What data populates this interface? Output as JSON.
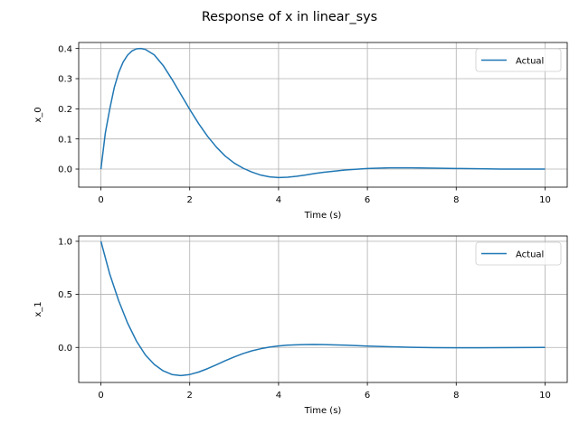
{
  "figure": {
    "suptitle": "Response of x in linear_sys"
  },
  "chart_data": [
    {
      "type": "line",
      "title": "",
      "xlabel": "Time (s)",
      "ylabel": "x_0",
      "xlim": [
        -0.5,
        10.5
      ],
      "ylim": [
        -0.06,
        0.42
      ],
      "xticks": [
        0,
        2,
        4,
        6,
        8,
        10
      ],
      "xtick_labels": [
        "0",
        "2",
        "4",
        "6",
        "8",
        "10"
      ],
      "yticks": [
        0.0,
        0.1,
        0.2,
        0.3,
        0.4
      ],
      "ytick_labels": [
        "0.0",
        "0.1",
        "0.2",
        "0.3",
        "0.4"
      ],
      "grid": true,
      "legend_position": "top-right",
      "series": [
        {
          "name": "Actual",
          "color": "#1f77b4",
          "x": [
            0,
            0.1,
            0.2,
            0.3,
            0.4,
            0.5,
            0.6,
            0.7,
            0.8,
            0.9,
            1.0,
            1.2,
            1.4,
            1.6,
            1.8,
            2.0,
            2.2,
            2.4,
            2.6,
            2.8,
            3.0,
            3.2,
            3.4,
            3.6,
            3.8,
            4.0,
            4.2,
            4.4,
            4.6,
            4.8,
            5.0,
            5.5,
            6.0,
            6.5,
            7.0,
            7.5,
            8.0,
            8.5,
            9.0,
            9.5,
            10.0
          ],
          "y": [
            0.0,
            0.12,
            0.2,
            0.27,
            0.32,
            0.355,
            0.378,
            0.392,
            0.399,
            0.4,
            0.397,
            0.379,
            0.344,
            0.298,
            0.248,
            0.198,
            0.151,
            0.109,
            0.073,
            0.043,
            0.02,
            0.003,
            -0.01,
            -0.02,
            -0.026,
            -0.028,
            -0.027,
            -0.024,
            -0.02,
            -0.015,
            -0.011,
            -0.003,
            0.002,
            0.004,
            0.004,
            0.003,
            0.002,
            0.001,
            0.0,
            0.0,
            0.0
          ]
        }
      ]
    },
    {
      "type": "line",
      "title": "",
      "xlabel": "Time (s)",
      "ylabel": "x_1",
      "xlim": [
        -0.5,
        10.5
      ],
      "ylim": [
        -0.33,
        1.05
      ],
      "xticks": [
        0,
        2,
        4,
        6,
        8,
        10
      ],
      "xtick_labels": [
        "0",
        "2",
        "4",
        "6",
        "8",
        "10"
      ],
      "yticks": [
        0.0,
        0.5,
        1.0
      ],
      "ytick_labels": [
        "0.0",
        "0.5",
        "1.0"
      ],
      "grid": true,
      "legend_position": "top-right",
      "series": [
        {
          "name": "Actual",
          "color": "#1f77b4",
          "x": [
            0,
            0.2,
            0.4,
            0.6,
            0.8,
            1.0,
            1.2,
            1.4,
            1.6,
            1.8,
            2.0,
            2.2,
            2.4,
            2.6,
            2.8,
            3.0,
            3.2,
            3.4,
            3.6,
            3.8,
            4.0,
            4.2,
            4.4,
            4.6,
            4.8,
            5.0,
            5.5,
            6.0,
            6.5,
            7.0,
            7.5,
            8.0,
            8.5,
            9.0,
            9.5,
            10.0
          ],
          "y": [
            1.0,
            0.69,
            0.44,
            0.23,
            0.06,
            -0.07,
            -0.16,
            -0.22,
            -0.255,
            -0.265,
            -0.255,
            -0.232,
            -0.2,
            -0.163,
            -0.125,
            -0.09,
            -0.058,
            -0.032,
            -0.012,
            0.003,
            0.014,
            0.021,
            0.025,
            0.027,
            0.028,
            0.027,
            0.021,
            0.013,
            0.006,
            0.001,
            -0.002,
            -0.003,
            -0.003,
            -0.002,
            -0.001,
            0.0
          ]
        }
      ]
    }
  ]
}
